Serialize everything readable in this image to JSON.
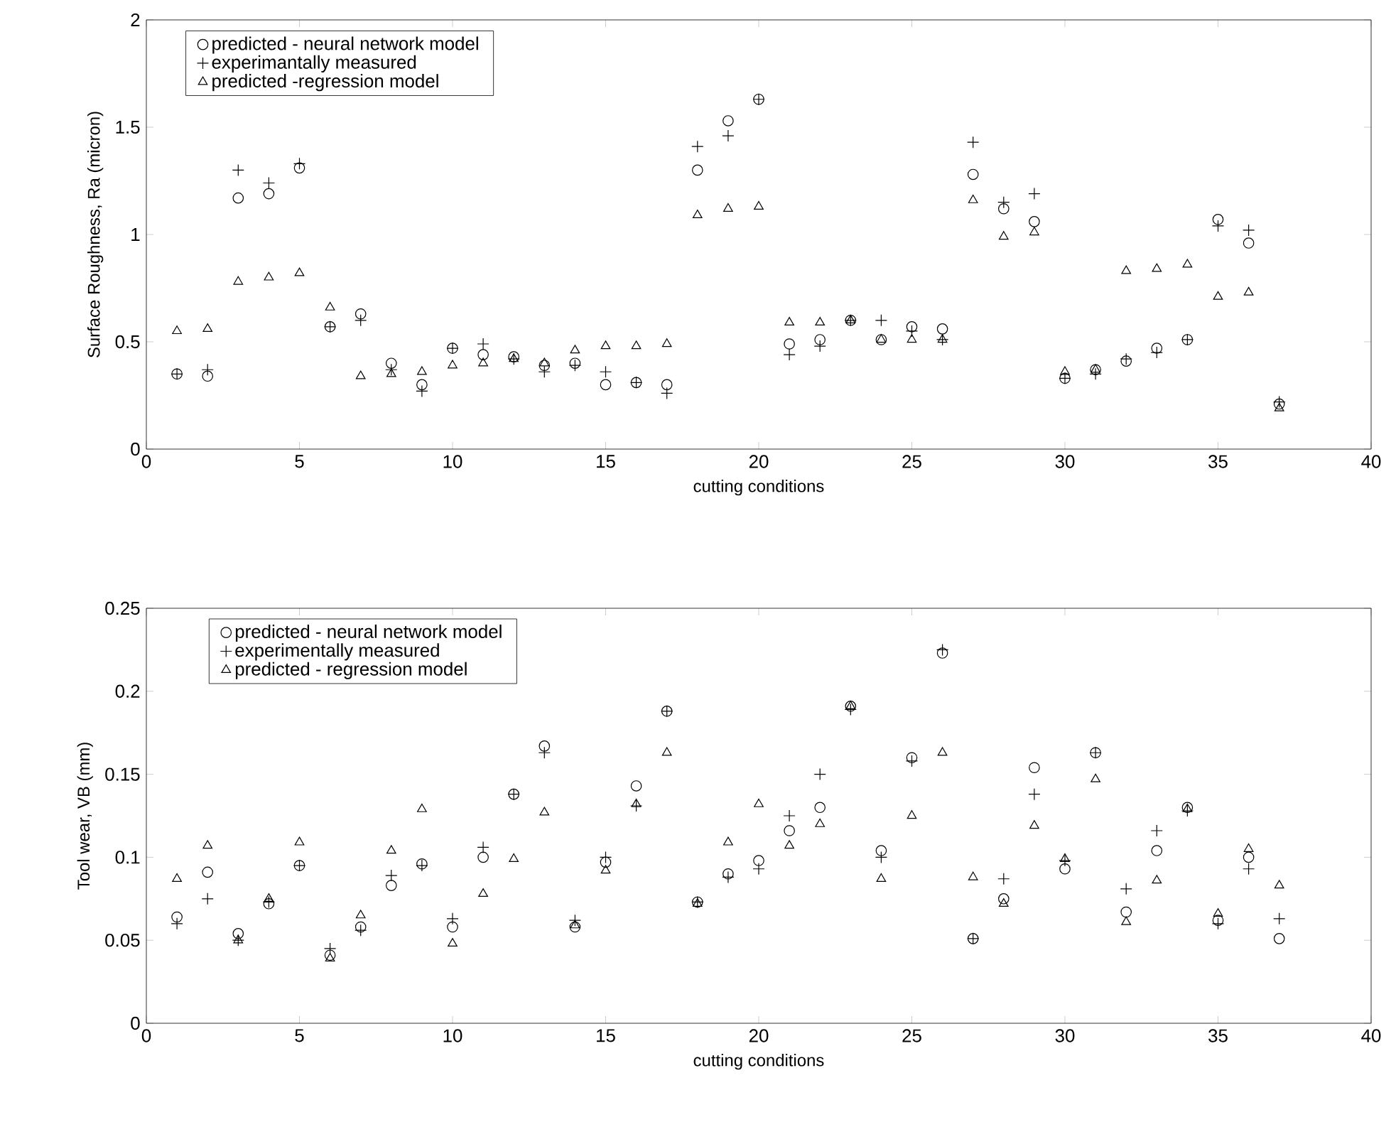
{
  "chart_data": [
    {
      "type": "scatter",
      "xlabel": "cutting conditions",
      "ylabel": "Surface Roughness, Ra (micron)",
      "xlim": [
        0,
        40
      ],
      "xticks": [
        0,
        5,
        10,
        15,
        20,
        25,
        30,
        35,
        40
      ],
      "ylim": [
        0,
        2
      ],
      "yticks": [
        0,
        0.5,
        1,
        1.5,
        2
      ],
      "legend": "top left",
      "x": [
        1,
        2,
        3,
        4,
        5,
        6,
        7,
        8,
        9,
        10,
        11,
        12,
        13,
        14,
        15,
        16,
        17,
        18,
        19,
        20,
        21,
        22,
        23,
        24,
        25,
        26,
        27,
        28,
        29,
        30,
        31,
        32,
        33,
        34,
        35,
        36,
        37
      ],
      "series": [
        {
          "name": "predicted - neural network model",
          "color": "#000000",
          "marker": "circle",
          "values": [
            0.35,
            0.34,
            1.17,
            1.19,
            1.31,
            0.57,
            0.63,
            0.4,
            0.3,
            0.47,
            0.44,
            0.43,
            0.39,
            0.4,
            0.3,
            0.31,
            0.3,
            1.3,
            1.53,
            1.63,
            0.49,
            0.51,
            0.6,
            0.51,
            0.57,
            0.56,
            1.28,
            1.12,
            1.06,
            0.33,
            0.37,
            0.41,
            0.47,
            0.51,
            1.07,
            0.96,
            0.21
          ]
        },
        {
          "name": "experimantally measured",
          "color": "#000000",
          "marker": "cross",
          "values": [
            0.35,
            0.37,
            1.3,
            1.24,
            1.33,
            0.57,
            0.6,
            0.37,
            0.27,
            0.47,
            0.49,
            0.42,
            0.36,
            0.39,
            0.36,
            0.31,
            0.26,
            1.41,
            1.46,
            1.63,
            0.44,
            0.48,
            0.6,
            0.6,
            0.55,
            0.51,
            1.43,
            1.15,
            1.19,
            0.33,
            0.35,
            0.42,
            0.45,
            0.51,
            1.04,
            1.02,
            0.22
          ]
        },
        {
          "name": "predicted -regression model",
          "color": "#000000",
          "marker": "triangle",
          "values": [
            0.55,
            0.56,
            0.78,
            0.8,
            0.82,
            0.66,
            0.34,
            0.35,
            0.36,
            0.39,
            0.4,
            0.42,
            0.4,
            0.46,
            0.48,
            0.48,
            0.49,
            1.09,
            1.12,
            1.13,
            0.59,
            0.59,
            0.6,
            0.51,
            0.51,
            0.51,
            1.16,
            0.99,
            1.01,
            0.36,
            0.37,
            0.83,
            0.84,
            0.86,
            0.71,
            0.73,
            0.19
          ]
        }
      ]
    },
    {
      "type": "scatter",
      "xlabel": "cutting conditions",
      "ylabel": "Tool wear, VB (mm)",
      "xlim": [
        0,
        40
      ],
      "xticks": [
        0,
        5,
        10,
        15,
        20,
        25,
        30,
        35,
        40
      ],
      "ylim": [
        0,
        0.25
      ],
      "yticks": [
        0,
        0.05,
        0.1,
        0.15,
        0.2,
        0.25
      ],
      "legend": "top left",
      "x": [
        1,
        2,
        3,
        4,
        5,
        6,
        7,
        8,
        9,
        10,
        11,
        12,
        13,
        14,
        15,
        16,
        17,
        18,
        19,
        20,
        21,
        22,
        23,
        24,
        25,
        26,
        27,
        28,
        29,
        30,
        31,
        32,
        33,
        34,
        35,
        36,
        37
      ],
      "series": [
        {
          "name": "predicted - neural network model",
          "color": "#000000",
          "marker": "circle",
          "values": [
            0.064,
            0.091,
            0.054,
            0.072,
            0.095,
            0.041,
            0.058,
            0.083,
            0.096,
            0.058,
            0.1,
            0.138,
            0.167,
            0.058,
            0.097,
            0.143,
            0.188,
            0.073,
            0.09,
            0.098,
            0.116,
            0.13,
            0.191,
            0.104,
            0.16,
            0.223,
            0.051,
            0.075,
            0.154,
            0.093,
            0.163,
            0.067,
            0.104,
            0.13,
            0.062,
            0.1,
            0.051
          ]
        },
        {
          "name": "experimentally measured",
          "color": "#000000",
          "marker": "cross",
          "values": [
            0.06,
            0.075,
            0.05,
            0.073,
            0.095,
            0.045,
            0.056,
            0.089,
            0.095,
            0.063,
            0.106,
            0.138,
            0.163,
            0.062,
            0.1,
            0.131,
            0.188,
            0.073,
            0.088,
            0.093,
            0.125,
            0.15,
            0.189,
            0.1,
            0.158,
            0.225,
            0.051,
            0.087,
            0.138,
            0.098,
            0.163,
            0.081,
            0.116,
            0.128,
            0.06,
            0.093,
            0.063
          ]
        },
        {
          "name": "predicted - regression model",
          "color": "#000000",
          "marker": "triangle",
          "values": [
            0.087,
            0.107,
            0.05,
            0.075,
            0.109,
            0.039,
            0.065,
            0.104,
            0.129,
            0.048,
            0.078,
            0.099,
            0.127,
            0.059,
            0.092,
            0.132,
            0.163,
            0.072,
            0.109,
            0.132,
            0.107,
            0.12,
            0.191,
            0.087,
            0.125,
            0.163,
            0.088,
            0.072,
            0.119,
            0.099,
            0.147,
            0.061,
            0.086,
            0.129,
            0.066,
            0.105,
            0.083
          ]
        }
      ]
    }
  ]
}
